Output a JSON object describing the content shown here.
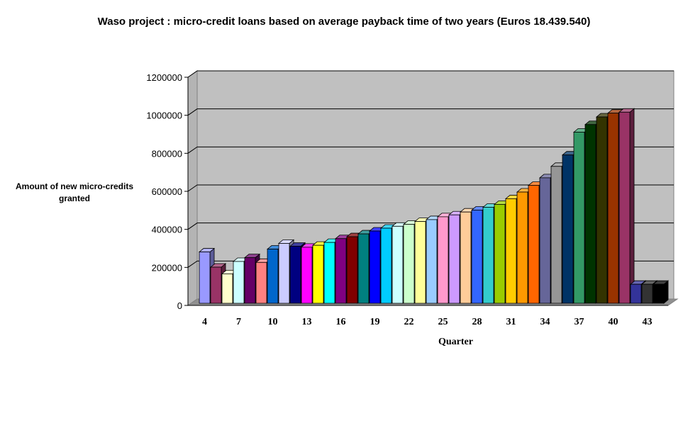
{
  "chart_data": {
    "type": "bar",
    "title": "Waso project : micro-credit loans based on average payback time of two years (Euros 18.439.540)",
    "xlabel": "Quarter",
    "ylabel": "Amount of new micro-credits granted",
    "ylim": [
      0,
      1200000
    ],
    "yticks": [
      "0",
      "200000",
      "400000",
      "600000",
      "800000",
      "1000000",
      "1200000"
    ],
    "xtick_labels": [
      "4",
      "7",
      "10",
      "13",
      "16",
      "19",
      "22",
      "25",
      "28",
      "31",
      "34",
      "37",
      "40",
      "43"
    ],
    "grid": true,
    "categories": [
      4,
      5,
      6,
      7,
      8,
      9,
      10,
      11,
      12,
      13,
      14,
      15,
      16,
      17,
      18,
      19,
      20,
      21,
      22,
      23,
      24,
      25,
      26,
      27,
      28,
      29,
      30,
      31,
      32,
      33,
      34,
      35,
      36,
      37,
      38,
      39,
      40,
      41,
      42,
      43,
      44
    ],
    "values": [
      270000,
      190000,
      155000,
      220000,
      240000,
      215000,
      285000,
      315000,
      300000,
      295000,
      305000,
      320000,
      340000,
      350000,
      365000,
      380000,
      395000,
      405000,
      415000,
      430000,
      440000,
      455000,
      465000,
      480000,
      490000,
      505000,
      520000,
      550000,
      585000,
      620000,
      660000,
      720000,
      780000,
      900000,
      940000,
      980000,
      1000000,
      1005000,
      100000,
      100000,
      100000
    ],
    "colors": [
      "#9999FF",
      "#993366",
      "#FFFFCC",
      "#CCFFFF",
      "#660066",
      "#FF8080",
      "#0066CC",
      "#CCCCFF",
      "#000080",
      "#FF00FF",
      "#FFFF00",
      "#00FFFF",
      "#800080",
      "#800000",
      "#008080",
      "#0000FF",
      "#00CCFF",
      "#CCFFFF",
      "#CCFFCC",
      "#FFFF99",
      "#99CCFF",
      "#FF99CC",
      "#CC99FF",
      "#FFCC99",
      "#3366FF",
      "#33CCCC",
      "#99CC00",
      "#FFCC00",
      "#FF9900",
      "#FF6600",
      "#666699",
      "#969696",
      "#003366",
      "#339966",
      "#003300",
      "#333300",
      "#993300",
      "#993366",
      "#333399",
      "#333333",
      "#000000"
    ]
  }
}
